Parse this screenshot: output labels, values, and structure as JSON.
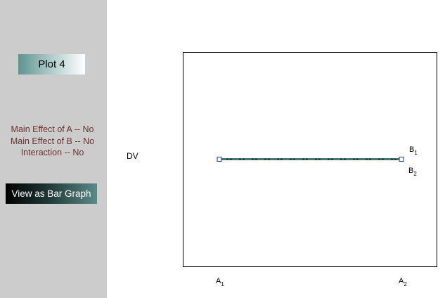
{
  "sidebar": {
    "plot_title": "Plot 4",
    "effects": [
      "Main Effect of A -- No",
      "Main Effect of B -- No",
      "Interaction -- No"
    ],
    "bar_graph_button": "View as Bar Graph"
  },
  "chart_data": {
    "type": "line",
    "ylabel": "DV",
    "x": [
      "A1",
      "A2"
    ],
    "series": [
      {
        "name": "B1",
        "values": [
          1,
          1
        ]
      },
      {
        "name": "B2",
        "values": [
          1,
          1
        ]
      }
    ],
    "colors": {
      "B1": "#0a2a22",
      "B2": "#2f7f79",
      "markers": "#1b2fa0"
    }
  },
  "legend": {
    "b1": "B",
    "b1_sub": "1",
    "b2": "B",
    "b2_sub": "2"
  },
  "axis": {
    "a1": "A",
    "a1_sub": "1",
    "a2": "A",
    "a2_sub": "2"
  }
}
